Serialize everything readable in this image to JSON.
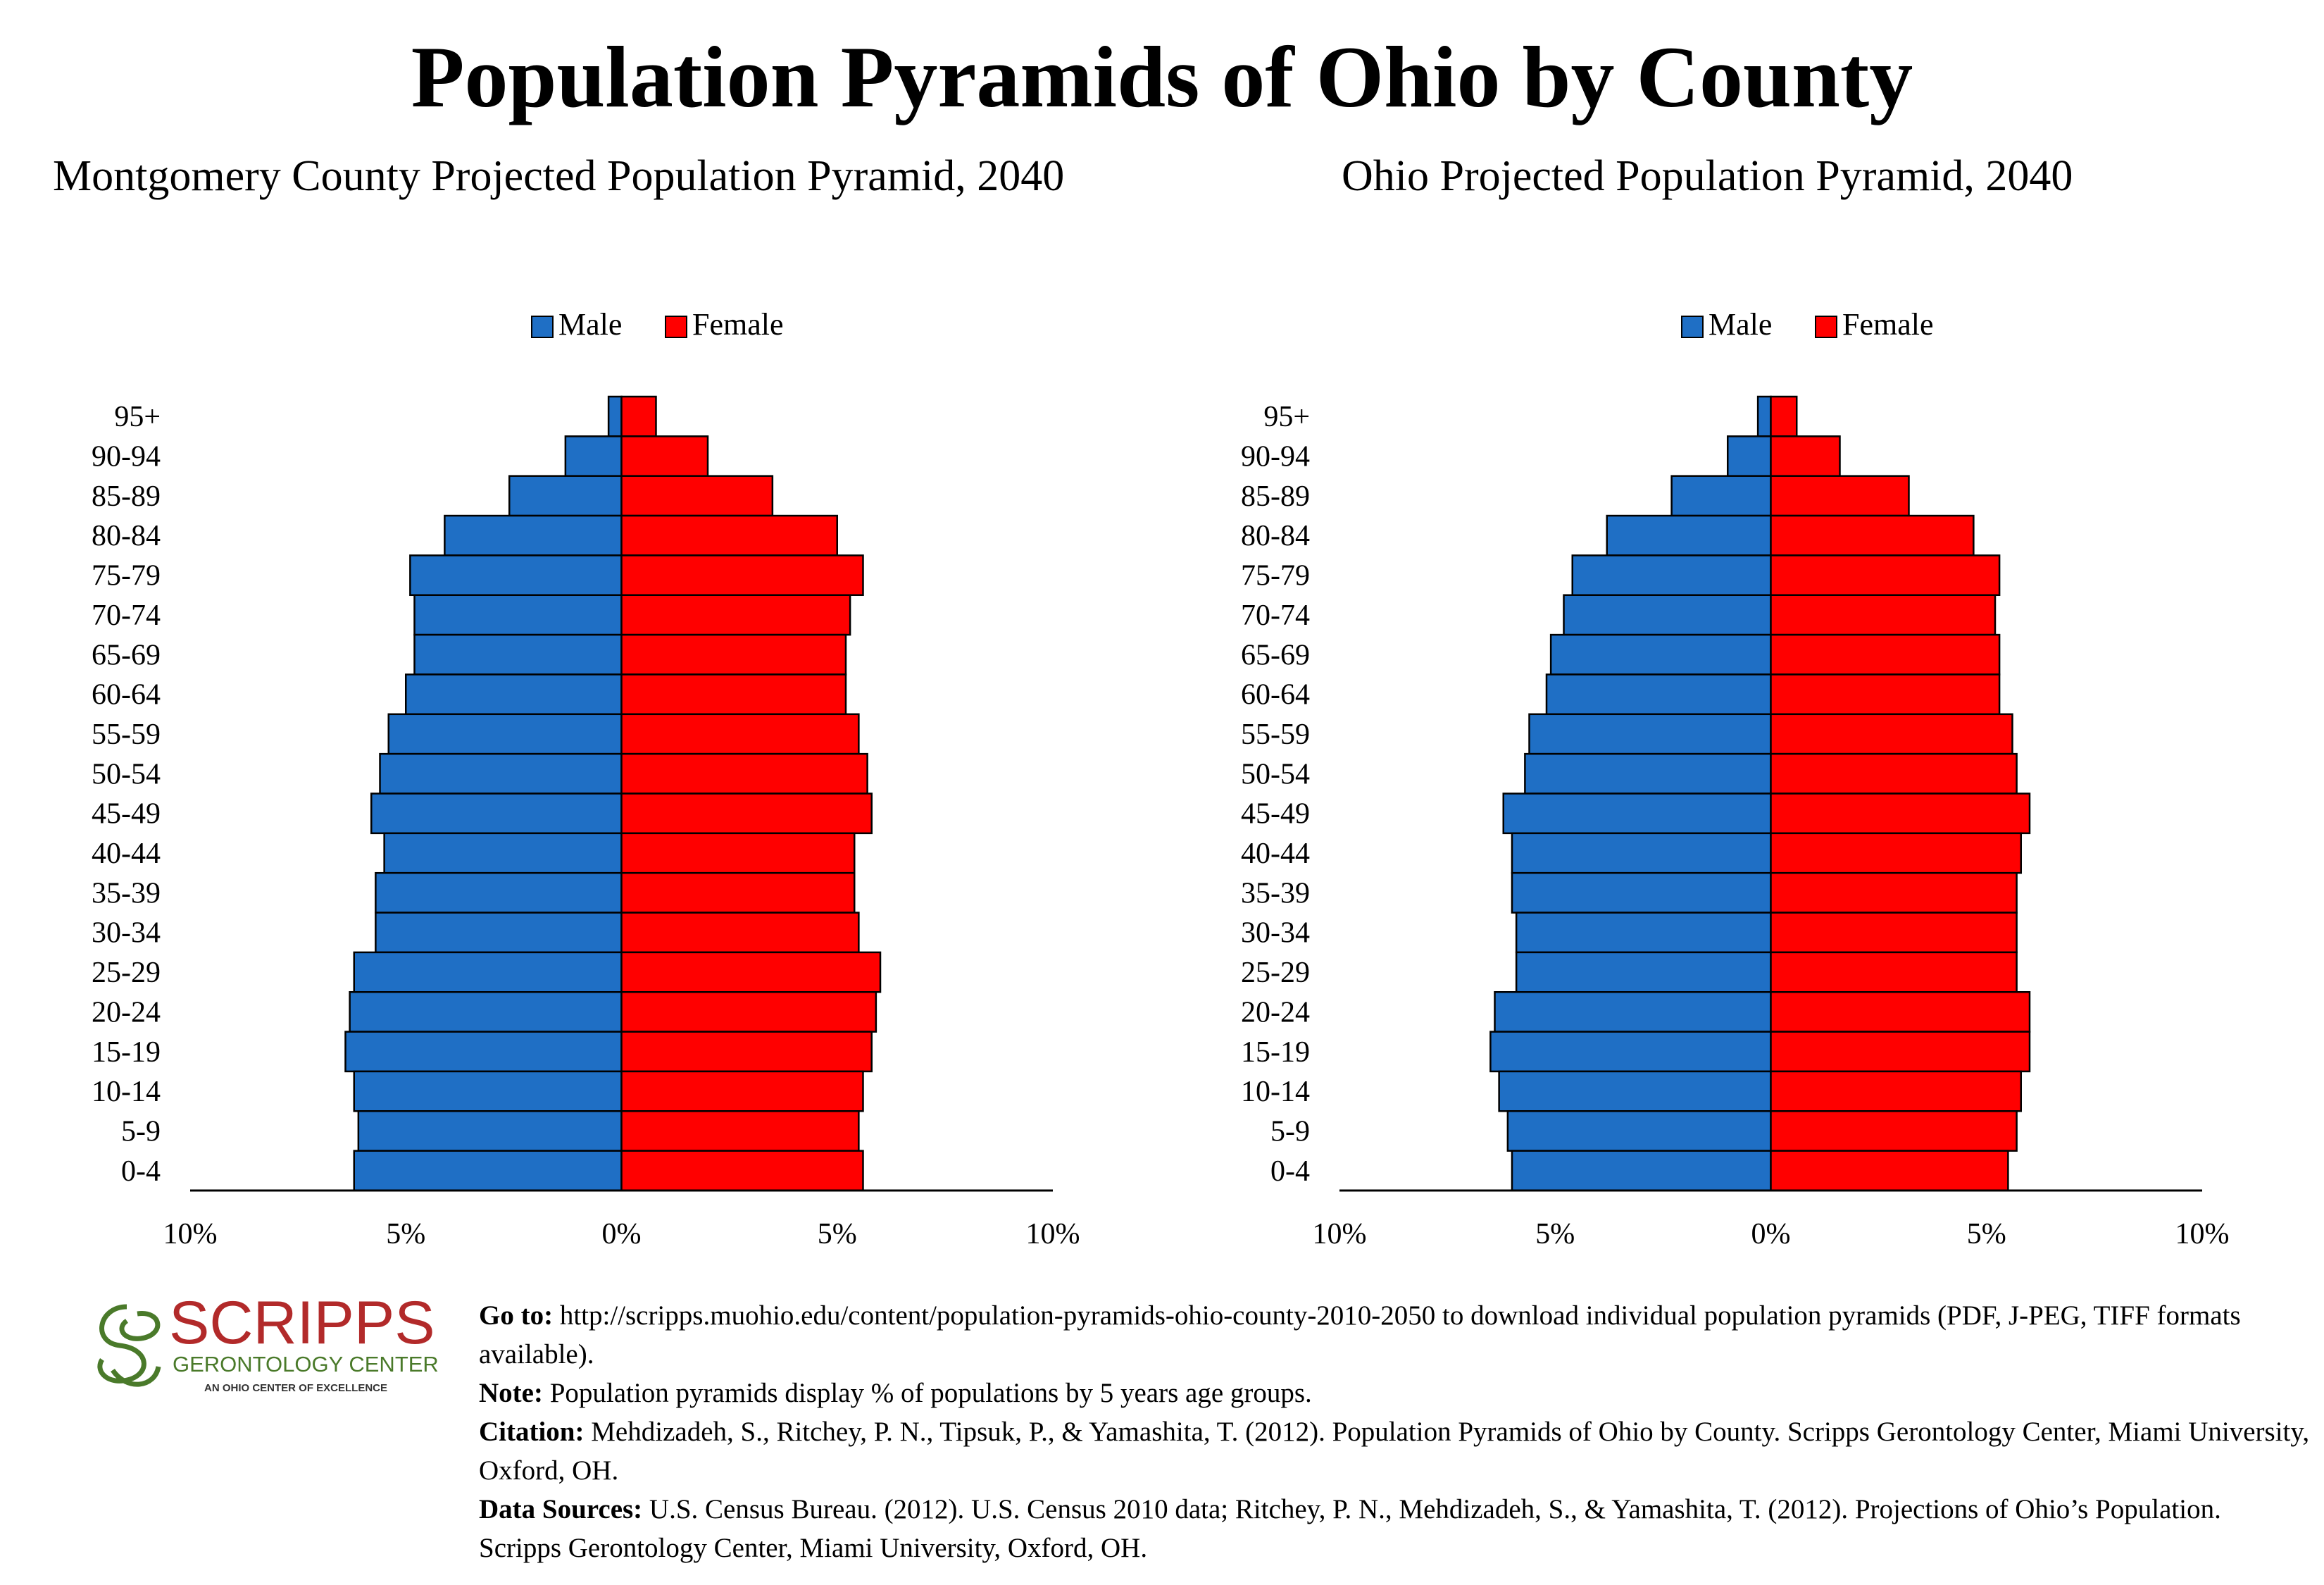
{
  "title": "Population Pyramids of Ohio by County",
  "colors": {
    "male": "#1f6fc5",
    "female": "#ff0000"
  },
  "chart_data": [
    {
      "type": "bar",
      "title": "Montgomery County Projected Population Pyramid, 2040",
      "legend": [
        "Male",
        "Female"
      ],
      "legend_position": "top-center",
      "categories": [
        "95+",
        "90-94",
        "85-89",
        "80-84",
        "75-79",
        "70-74",
        "65-69",
        "60-64",
        "55-59",
        "50-54",
        "45-49",
        "40-44",
        "35-39",
        "30-34",
        "25-29",
        "20-24",
        "15-19",
        "10-14",
        "5-9",
        "0-4"
      ],
      "series": [
        {
          "name": "Male",
          "values": [
            0.3,
            1.3,
            2.6,
            4.1,
            4.9,
            4.8,
            4.8,
            5.0,
            5.4,
            5.6,
            5.8,
            5.5,
            5.7,
            5.7,
            6.2,
            6.3,
            6.4,
            6.2,
            6.1,
            6.2
          ]
        },
        {
          "name": "Female",
          "values": [
            0.8,
            2.0,
            3.5,
            5.0,
            5.6,
            5.3,
            5.2,
            5.2,
            5.5,
            5.7,
            5.8,
            5.4,
            5.4,
            5.5,
            6.0,
            5.9,
            5.8,
            5.6,
            5.5,
            5.6
          ]
        }
      ],
      "xlim": [
        -10,
        10
      ],
      "xticks": [
        -10,
        -5,
        0,
        5,
        10
      ],
      "xtick_labels": [
        "10%",
        "5%",
        "0%",
        "5%",
        "10%"
      ]
    },
    {
      "type": "bar",
      "title": "Ohio Projected Population Pyramid, 2040",
      "legend": [
        "Male",
        "Female"
      ],
      "legend_position": "top-center",
      "categories": [
        "95+",
        "90-94",
        "85-89",
        "80-84",
        "75-79",
        "70-74",
        "65-69",
        "60-64",
        "55-59",
        "50-54",
        "45-49",
        "40-44",
        "35-39",
        "30-34",
        "25-29",
        "20-24",
        "15-19",
        "10-14",
        "5-9",
        "0-4"
      ],
      "series": [
        {
          "name": "Male",
          "values": [
            0.3,
            1.0,
            2.3,
            3.8,
            4.6,
            4.8,
            5.1,
            5.2,
            5.6,
            5.7,
            6.2,
            6.0,
            6.0,
            5.9,
            5.9,
            6.4,
            6.5,
            6.3,
            6.1,
            6.0
          ]
        },
        {
          "name": "Female",
          "values": [
            0.6,
            1.6,
            3.2,
            4.7,
            5.3,
            5.2,
            5.3,
            5.3,
            5.6,
            5.7,
            6.0,
            5.8,
            5.7,
            5.7,
            5.7,
            6.0,
            6.0,
            5.8,
            5.7,
            5.5
          ]
        }
      ],
      "xlim": [
        -10,
        10
      ],
      "xticks": [
        -10,
        -5,
        0,
        5,
        10
      ],
      "xtick_labels": [
        "10%",
        "5%",
        "0%",
        "5%",
        "10%"
      ]
    }
  ],
  "logo": {
    "name": "SCRIPPS",
    "line2": "GERONTOLOGY CENTER",
    "line3": "AN OHIO CENTER OF EXCELLENCE",
    "color": "#b22a2a",
    "accent": "#4a7a2a"
  },
  "footer": {
    "goto_label": "Go to:",
    "goto_text": " http://scripps.muohio.edu/content/population-pyramids-ohio-county-2010-2050 to download individual population pyramids (PDF, J-PEG, TIFF formats available).",
    "note_label": "Note:",
    "note_text": " Population pyramids display % of populations by 5 years age groups.",
    "citation_label": "Citation:",
    "citation_text": " Mehdizadeh, S., Ritchey, P. N., Tipsuk, P., & Yamashita, T. (2012). Population Pyramids of Ohio by County. Scripps Gerontology Center, Miami University, Oxford, OH.",
    "sources_label": "Data Sources:",
    "sources_text": " U.S. Census Bureau. (2012). U.S. Census 2010 data; Ritchey, P. N., Mehdizadeh, S., & Yamashita, T. (2012). Projections of Ohio’s Population. Scripps Gerontology Center, Miami University, Oxford, OH."
  }
}
